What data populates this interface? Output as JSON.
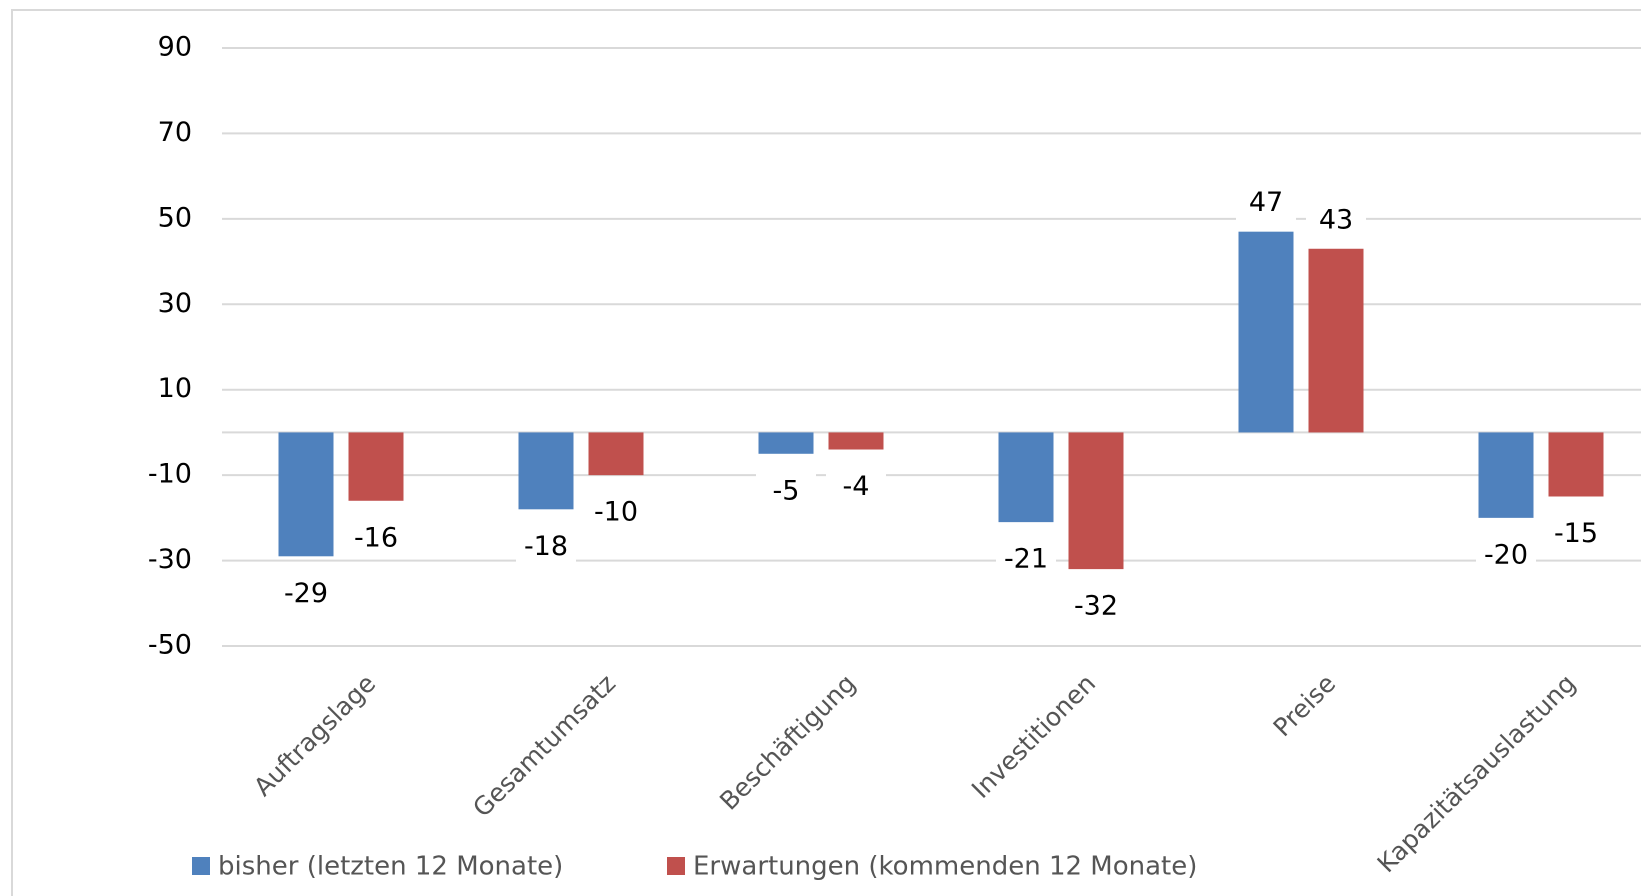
{
  "chart_data": {
    "type": "bar",
    "categories": [
      "Auftragslage",
      "Gesamtumsatz",
      "Beschäftigung",
      "Investitionen",
      "Preise",
      "Kapazitätsauslastung"
    ],
    "series": [
      {
        "name": "bisher (letzten 12 Monate)",
        "color": "#4f81bd",
        "values": [
          -29,
          -18,
          -5,
          -21,
          47,
          -20
        ]
      },
      {
        "name": "Erwartungen (kommenden 12 Monate)",
        "color": "#c0504d",
        "values": [
          -16,
          -10,
          -4,
          -32,
          43,
          -15
        ]
      }
    ],
    "ylim": [
      -50,
      90
    ],
    "yticks": [
      -50,
      -30,
      -10,
      10,
      30,
      50,
      70,
      90
    ],
    "grid": true,
    "legend": "bottom"
  }
}
